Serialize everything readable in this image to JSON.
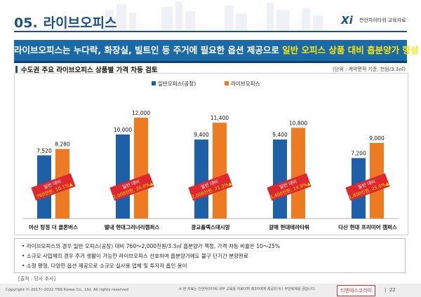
{
  "header": {
    "section_number": "05.",
    "section_title": "라이브오피스",
    "logo_text": "천안자이타워 교육자료",
    "logo_mark": "Xi"
  },
  "banner": {
    "text_prefix": "라이브오피스는 누다락, 화장실, 빌트인 등 주거에 필요한 옵션 제공으로 ",
    "text_highlight": "일반 오피스 상품 대비 흡분양가 형성"
  },
  "subtitle": "수도권 주요 라이브오피스 상품별 가격 차등 검토",
  "unit_note": "(단위 : 계약면적 기준, 천원/3.3㎡)",
  "chart_data": {
    "type": "bar",
    "categories": [
      "아산 탕정 더 클론버스",
      "별내 현대그리너리캠퍼스",
      "광교플렉스데시앙",
      "갈매 현대테라타워",
      "다산 현대 프리미어 캠퍼스"
    ],
    "series": [
      {
        "name": "일반오피스(공장)",
        "values": [
          7520,
          10000,
          9400,
          9400,
          7200
        ],
        "color": "#1f5fa8"
      },
      {
        "name": "라이브오피스",
        "values": [
          8280,
          12000,
          11400,
          10800,
          9000
        ],
        "color": "#ee7a23"
      }
    ],
    "value_labels": {
      "general": [
        "7,520",
        "10,000",
        "9,400",
        "9,400",
        "7,200"
      ],
      "live": [
        "8,280",
        "12,000",
        "11,400",
        "10,800",
        "9,000"
      ]
    },
    "annotations": [
      {
        "line1": "일반 대비",
        "line2": "760천원, 10.1%▲"
      },
      {
        "line1": "일반 대비",
        "line2": "2,000천원, 20.0%▲"
      },
      {
        "line1": "일반 대비",
        "line2": "2,000천원, 21.3%▲"
      },
      {
        "line1": "일반 대비",
        "line2": "1,400천원, 14.9%▲"
      },
      {
        "line1": "일반 대비",
        "line2": "1,800천원, 25.0%▲"
      }
    ],
    "ylim": [
      0,
      13000
    ],
    "legend_position": "top-center",
    "grid": false
  },
  "notes": [
    "라이브오피스의 경우 일반 오피스(공장) 대비 760～2,000천원/3.3㎡ 흡분양가 책정, 가격 차등 비율은 10～25%",
    "소규모 사업체의 경우 주거 생활이 가능한 라이브오피스 선호하여 흡분양가에도 불구 단기간 분양완료",
    "소형 평형, 다양한 옵션 제공으로 소규모 실사용 업체 및 투자자 흡인 용이"
  ],
  "source": "[출처 : 당사 조사]",
  "footer": {
    "copyright": "Copyright © 2017~2022 TNS Korea Co., Ltd.  All rights reserved",
    "disclaimer": "※ 본 자료는 천안자이타워 내부 교육용 자료이며 제3자에게 제공되거나 무단복제를 금합니다.",
    "brand": "티엔에스코리아",
    "page_number": "22"
  },
  "colors": {
    "brand_blue": "#1b4f8c",
    "banner_blue": "#1b6aa8",
    "highlight_yellow": "#ffe600",
    "annotation_red": "#e0262e"
  }
}
